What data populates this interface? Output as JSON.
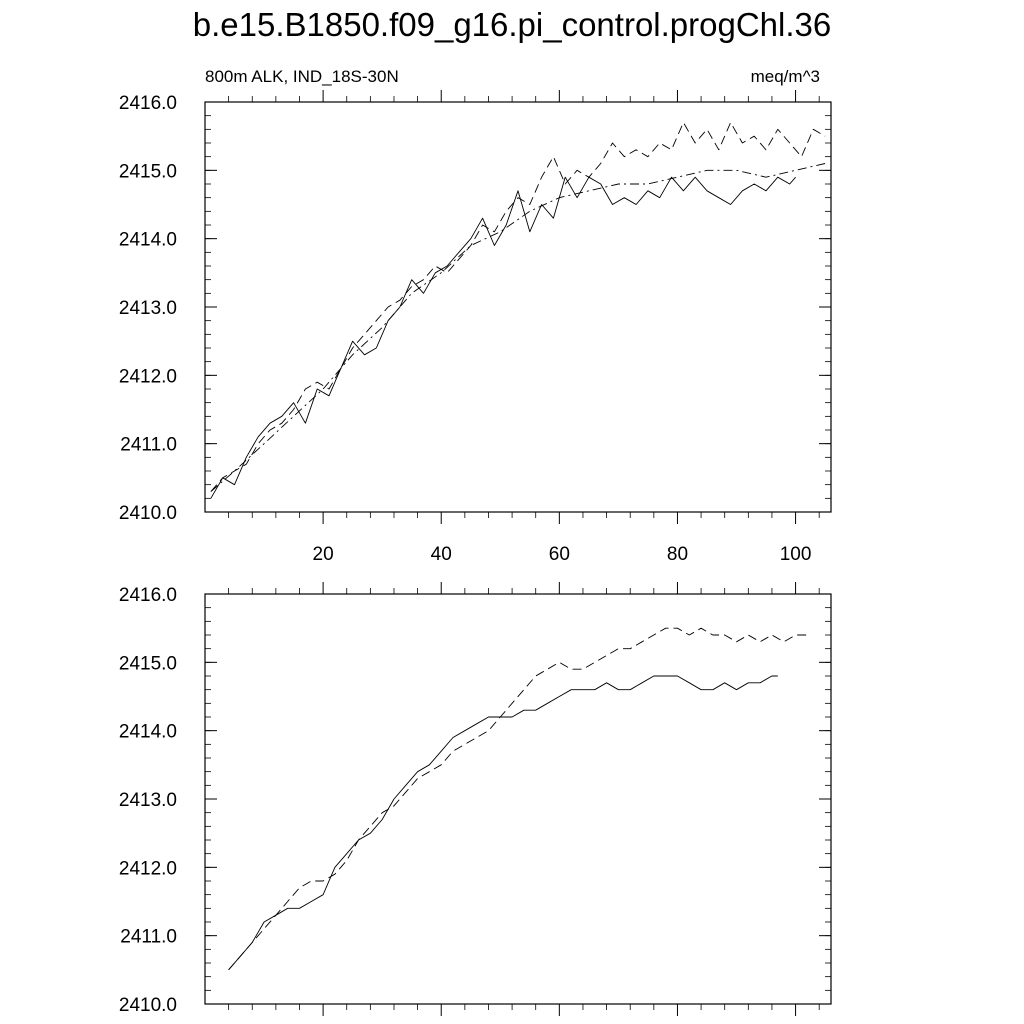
{
  "figure": {
    "title": "b.e15.B1850.f09_g16.pi_control.progChl.36"
  },
  "chart_data": [
    {
      "type": "line",
      "left_label": "800m ALK, IND_18S-30N",
      "right_label": "meq/m^3",
      "xlim": [
        0,
        106
      ],
      "ylim": [
        2410.0,
        2416.0
      ],
      "xticks": [
        20,
        40,
        60,
        80,
        100
      ],
      "yticks": [
        2410.0,
        2411.0,
        2412.0,
        2413.0,
        2414.0,
        2415.0,
        2416.0
      ],
      "x_tick_labels": [
        "20",
        "40",
        "60",
        "80",
        "100"
      ],
      "y_tick_labels": [
        "2410.0",
        "2411.0",
        "2412.0",
        "2413.0",
        "2414.0",
        "2415.0",
        "2416.0"
      ],
      "grid": false,
      "legend": "none",
      "series": [
        {
          "style": "solid",
          "x": [
            1,
            3,
            5,
            7,
            9,
            11,
            13,
            15,
            17,
            19,
            21,
            23,
            25,
            27,
            29,
            31,
            33,
            35,
            37,
            39,
            41,
            43,
            45,
            47,
            49,
            51,
            53,
            55,
            57,
            59,
            61,
            63,
            65,
            67,
            69,
            71,
            73,
            75,
            77,
            79,
            81,
            83,
            85,
            87,
            89,
            91,
            93,
            95,
            97,
            99,
            100
          ],
          "y": [
            2410.2,
            2410.5,
            2410.4,
            2410.8,
            2411.1,
            2411.3,
            2411.4,
            2411.6,
            2411.3,
            2411.8,
            2411.7,
            2412.1,
            2412.5,
            2412.3,
            2412.4,
            2412.8,
            2413.0,
            2413.4,
            2413.2,
            2413.5,
            2413.6,
            2413.8,
            2414.0,
            2414.3,
            2413.9,
            2414.2,
            2414.7,
            2414.1,
            2414.5,
            2414.3,
            2414.9,
            2414.6,
            2414.9,
            2414.8,
            2414.5,
            2414.6,
            2414.5,
            2414.7,
            2414.6,
            2414.9,
            2414.7,
            2414.9,
            2414.7,
            2414.6,
            2414.5,
            2414.7,
            2414.8,
            2414.7,
            2414.9,
            2414.8,
            2414.9
          ]
        },
        {
          "style": "dashed",
          "x": [
            1,
            3,
            5,
            7,
            9,
            11,
            13,
            15,
            17,
            19,
            21,
            23,
            25,
            27,
            29,
            31,
            33,
            35,
            37,
            39,
            41,
            43,
            45,
            47,
            49,
            51,
            53,
            55,
            57,
            59,
            61,
            63,
            65,
            67,
            69,
            71,
            73,
            75,
            77,
            79,
            81,
            83,
            85,
            87,
            89,
            91,
            93,
            95,
            97,
            99,
            101,
            103,
            105
          ],
          "y": [
            2410.3,
            2410.5,
            2410.6,
            2410.7,
            2411.0,
            2411.2,
            2411.3,
            2411.5,
            2411.8,
            2411.9,
            2411.8,
            2412.1,
            2412.4,
            2412.6,
            2412.8,
            2413.0,
            2413.1,
            2413.3,
            2413.4,
            2413.6,
            2413.5,
            2413.7,
            2413.9,
            2414.2,
            2414.1,
            2414.4,
            2414.6,
            2414.5,
            2414.9,
            2415.2,
            2414.8,
            2415.0,
            2414.9,
            2415.1,
            2415.4,
            2415.2,
            2415.3,
            2415.2,
            2415.4,
            2415.3,
            2415.7,
            2415.4,
            2415.6,
            2415.3,
            2415.7,
            2415.4,
            2415.5,
            2415.3,
            2415.6,
            2415.4,
            2415.2,
            2415.6,
            2415.5
          ]
        },
        {
          "style": "dash-dot",
          "x": [
            1,
            5,
            10,
            15,
            20,
            25,
            30,
            35,
            40,
            45,
            50,
            55,
            60,
            65,
            70,
            75,
            80,
            85,
            90,
            95,
            100,
            105
          ],
          "y": [
            2410.3,
            2410.6,
            2411.0,
            2411.4,
            2411.8,
            2412.3,
            2412.7,
            2413.2,
            2413.5,
            2413.9,
            2414.1,
            2414.4,
            2414.6,
            2414.7,
            2414.8,
            2414.8,
            2414.9,
            2415.0,
            2415.0,
            2414.9,
            2415.0,
            2415.1
          ]
        }
      ]
    },
    {
      "type": "line",
      "xlim": [
        0,
        106
      ],
      "ylim": [
        2410.0,
        2416.0
      ],
      "xticks": [
        20,
        40,
        60,
        80,
        100
      ],
      "yticks": [
        2410.0,
        2411.0,
        2412.0,
        2413.0,
        2414.0,
        2415.0,
        2416.0
      ],
      "y_tick_labels": [
        "2410.0",
        "2411.0",
        "2412.0",
        "2413.0",
        "2414.0",
        "2415.0",
        "2416.0"
      ],
      "grid": false,
      "legend": "none",
      "series": [
        {
          "style": "solid",
          "x": [
            4,
            6,
            8,
            10,
            12,
            14,
            16,
            18,
            20,
            22,
            24,
            26,
            28,
            30,
            32,
            34,
            36,
            38,
            40,
            42,
            44,
            46,
            48,
            50,
            52,
            54,
            56,
            58,
            60,
            62,
            64,
            66,
            68,
            70,
            72,
            74,
            76,
            78,
            80,
            82,
            84,
            86,
            88,
            90,
            92,
            94,
            96,
            97
          ],
          "y": [
            2410.5,
            2410.7,
            2410.9,
            2411.2,
            2411.3,
            2411.4,
            2411.4,
            2411.5,
            2411.6,
            2412.0,
            2412.2,
            2412.4,
            2412.5,
            2412.7,
            2413.0,
            2413.2,
            2413.4,
            2413.5,
            2413.7,
            2413.9,
            2414.0,
            2414.1,
            2414.2,
            2414.2,
            2414.2,
            2414.3,
            2414.3,
            2414.4,
            2414.5,
            2414.6,
            2414.6,
            2414.6,
            2414.7,
            2414.6,
            2414.6,
            2414.7,
            2414.8,
            2414.8,
            2414.8,
            2414.7,
            2414.6,
            2414.6,
            2414.7,
            2414.6,
            2414.7,
            2414.7,
            2414.8,
            2414.8
          ]
        },
        {
          "style": "dashed",
          "x": [
            4,
            6,
            8,
            10,
            12,
            14,
            16,
            18,
            20,
            22,
            24,
            26,
            28,
            30,
            32,
            34,
            36,
            38,
            40,
            42,
            44,
            46,
            48,
            50,
            52,
            54,
            56,
            58,
            60,
            62,
            64,
            66,
            68,
            70,
            72,
            74,
            76,
            78,
            80,
            82,
            84,
            86,
            88,
            90,
            92,
            94,
            96,
            98,
            100,
            102
          ],
          "y": [
            2410.5,
            2410.7,
            2410.9,
            2411.1,
            2411.3,
            2411.5,
            2411.7,
            2411.8,
            2411.8,
            2411.9,
            2412.1,
            2412.4,
            2412.6,
            2412.8,
            2412.9,
            2413.1,
            2413.3,
            2413.4,
            2413.5,
            2413.7,
            2413.8,
            2413.9,
            2414.0,
            2414.2,
            2414.4,
            2414.6,
            2414.8,
            2414.9,
            2415.0,
            2414.9,
            2414.9,
            2415.0,
            2415.1,
            2415.2,
            2415.2,
            2415.3,
            2415.4,
            2415.5,
            2415.5,
            2415.4,
            2415.5,
            2415.4,
            2415.4,
            2415.3,
            2415.4,
            2415.3,
            2415.4,
            2415.3,
            2415.4,
            2415.4
          ]
        }
      ]
    }
  ]
}
